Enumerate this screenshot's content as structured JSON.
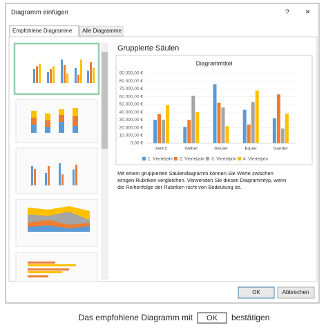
{
  "dialog": {
    "title": "Diagramm einfügen",
    "help": "?",
    "close": "×",
    "tabs": [
      "Empfohlene Diagramme",
      "Alle Diagramme"
    ],
    "heading": "Gruppierte Säulen",
    "description": [
      "Mit einem gruppierten Säulendiagramm können Sie Werte zwischen",
      "einigen Rubriken vergleichen. Verwenden Sie diesen Diagrammtyp, wenn",
      "die Reihenfolge der Rubriken nicht von Bedeutung ist."
    ],
    "buttons": [
      "OK",
      "Abbrechen"
    ],
    "preview": {
      "type": "bar",
      "title": "Diagrammtitel",
      "categories": [
        "Heinz",
        "Weber",
        "Reuter",
        "Bauer",
        "Sander"
      ],
      "series": [
        {
          "name": "1. Vierteljahr",
          "color": "#5b9bd5",
          "values": [
            30000,
            21000,
            76000,
            43000,
            32000
          ]
        },
        {
          "name": "2. Vierteljahr",
          "color": "#ed7d31",
          "values": [
            37500,
            30000,
            52000,
            24000,
            63000
          ]
        },
        {
          "name": "3. Vierteljahr",
          "color": "#a5a5a5",
          "values": [
            30000,
            61000,
            46000,
            53000,
            19000
          ]
        },
        {
          "name": "4. Vierteljahr",
          "color": "#ffc000",
          "values": [
            49000,
            40000,
            22000,
            68000,
            38000
          ]
        }
      ],
      "ylim": [
        0,
        90000
      ],
      "yticks": [
        {
          "value": 0,
          "label": "0,00 €"
        },
        {
          "value": 10000,
          "label": "10.000,00 €"
        },
        {
          "value": 20000,
          "label": "20.000,00 €"
        },
        {
          "value": 30000,
          "label": "30.000,00 €"
        },
        {
          "value": 40000,
          "label": "40.000,00 €"
        },
        {
          "value": 50000,
          "label": "50.000,00 €"
        },
        {
          "value": 60000,
          "label": "60.000,00 €"
        },
        {
          "value": 70000,
          "label": "70.000,00 €"
        },
        {
          "value": 80000,
          "label": "80.000,00 €"
        },
        {
          "value": 90000,
          "label": "90.000,00 €"
        }
      ],
      "grid": true,
      "legend": "bottom"
    }
  },
  "caption": {
    "before": "Das empfohlene Diagramm mit",
    "button": "OK",
    "after": "bestätigen"
  }
}
